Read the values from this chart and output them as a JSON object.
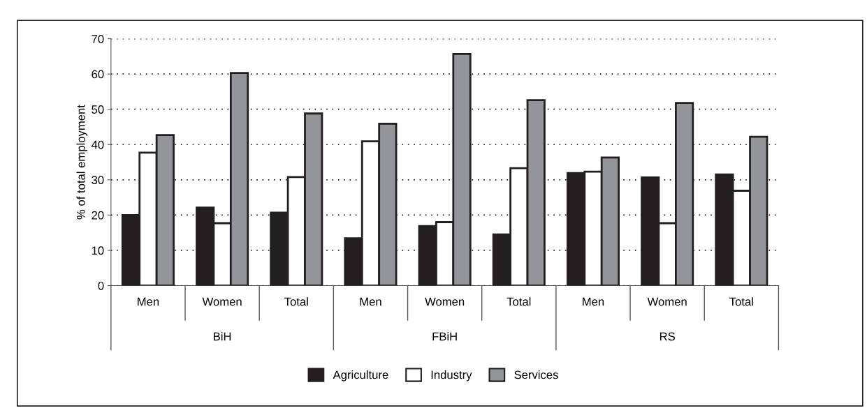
{
  "chart_data": {
    "type": "bar",
    "ylabel": "% of total employment",
    "categories": [
      "Men",
      "Women",
      "Total",
      "Men",
      "Women",
      "Total",
      "Men",
      "Women",
      "Total"
    ],
    "annotations": [
      "BiH",
      "FBiH",
      "RS"
    ],
    "series": [
      {
        "name": "Agriculture",
        "color": "#231f20",
        "values": [
          20.0,
          22.1,
          20.7,
          13.4,
          16.9,
          14.5,
          31.9,
          30.7,
          31.5
        ]
      },
      {
        "name": "Industry",
        "color": "#ffffff",
        "values": [
          37.7,
          17.7,
          30.8,
          40.9,
          18.0,
          33.3,
          32.3,
          17.7,
          26.9
        ]
      },
      {
        "name": "Services",
        "color": "#939598",
        "values": [
          42.7,
          60.3,
          48.8,
          45.9,
          65.7,
          52.6,
          36.3,
          51.8,
          42.2
        ]
      }
    ],
    "ylim": [
      0,
      70
    ],
    "yticks": [
      0,
      10,
      20,
      30,
      40,
      50,
      60,
      70
    ],
    "grid": "y",
    "legend": "bottom"
  }
}
